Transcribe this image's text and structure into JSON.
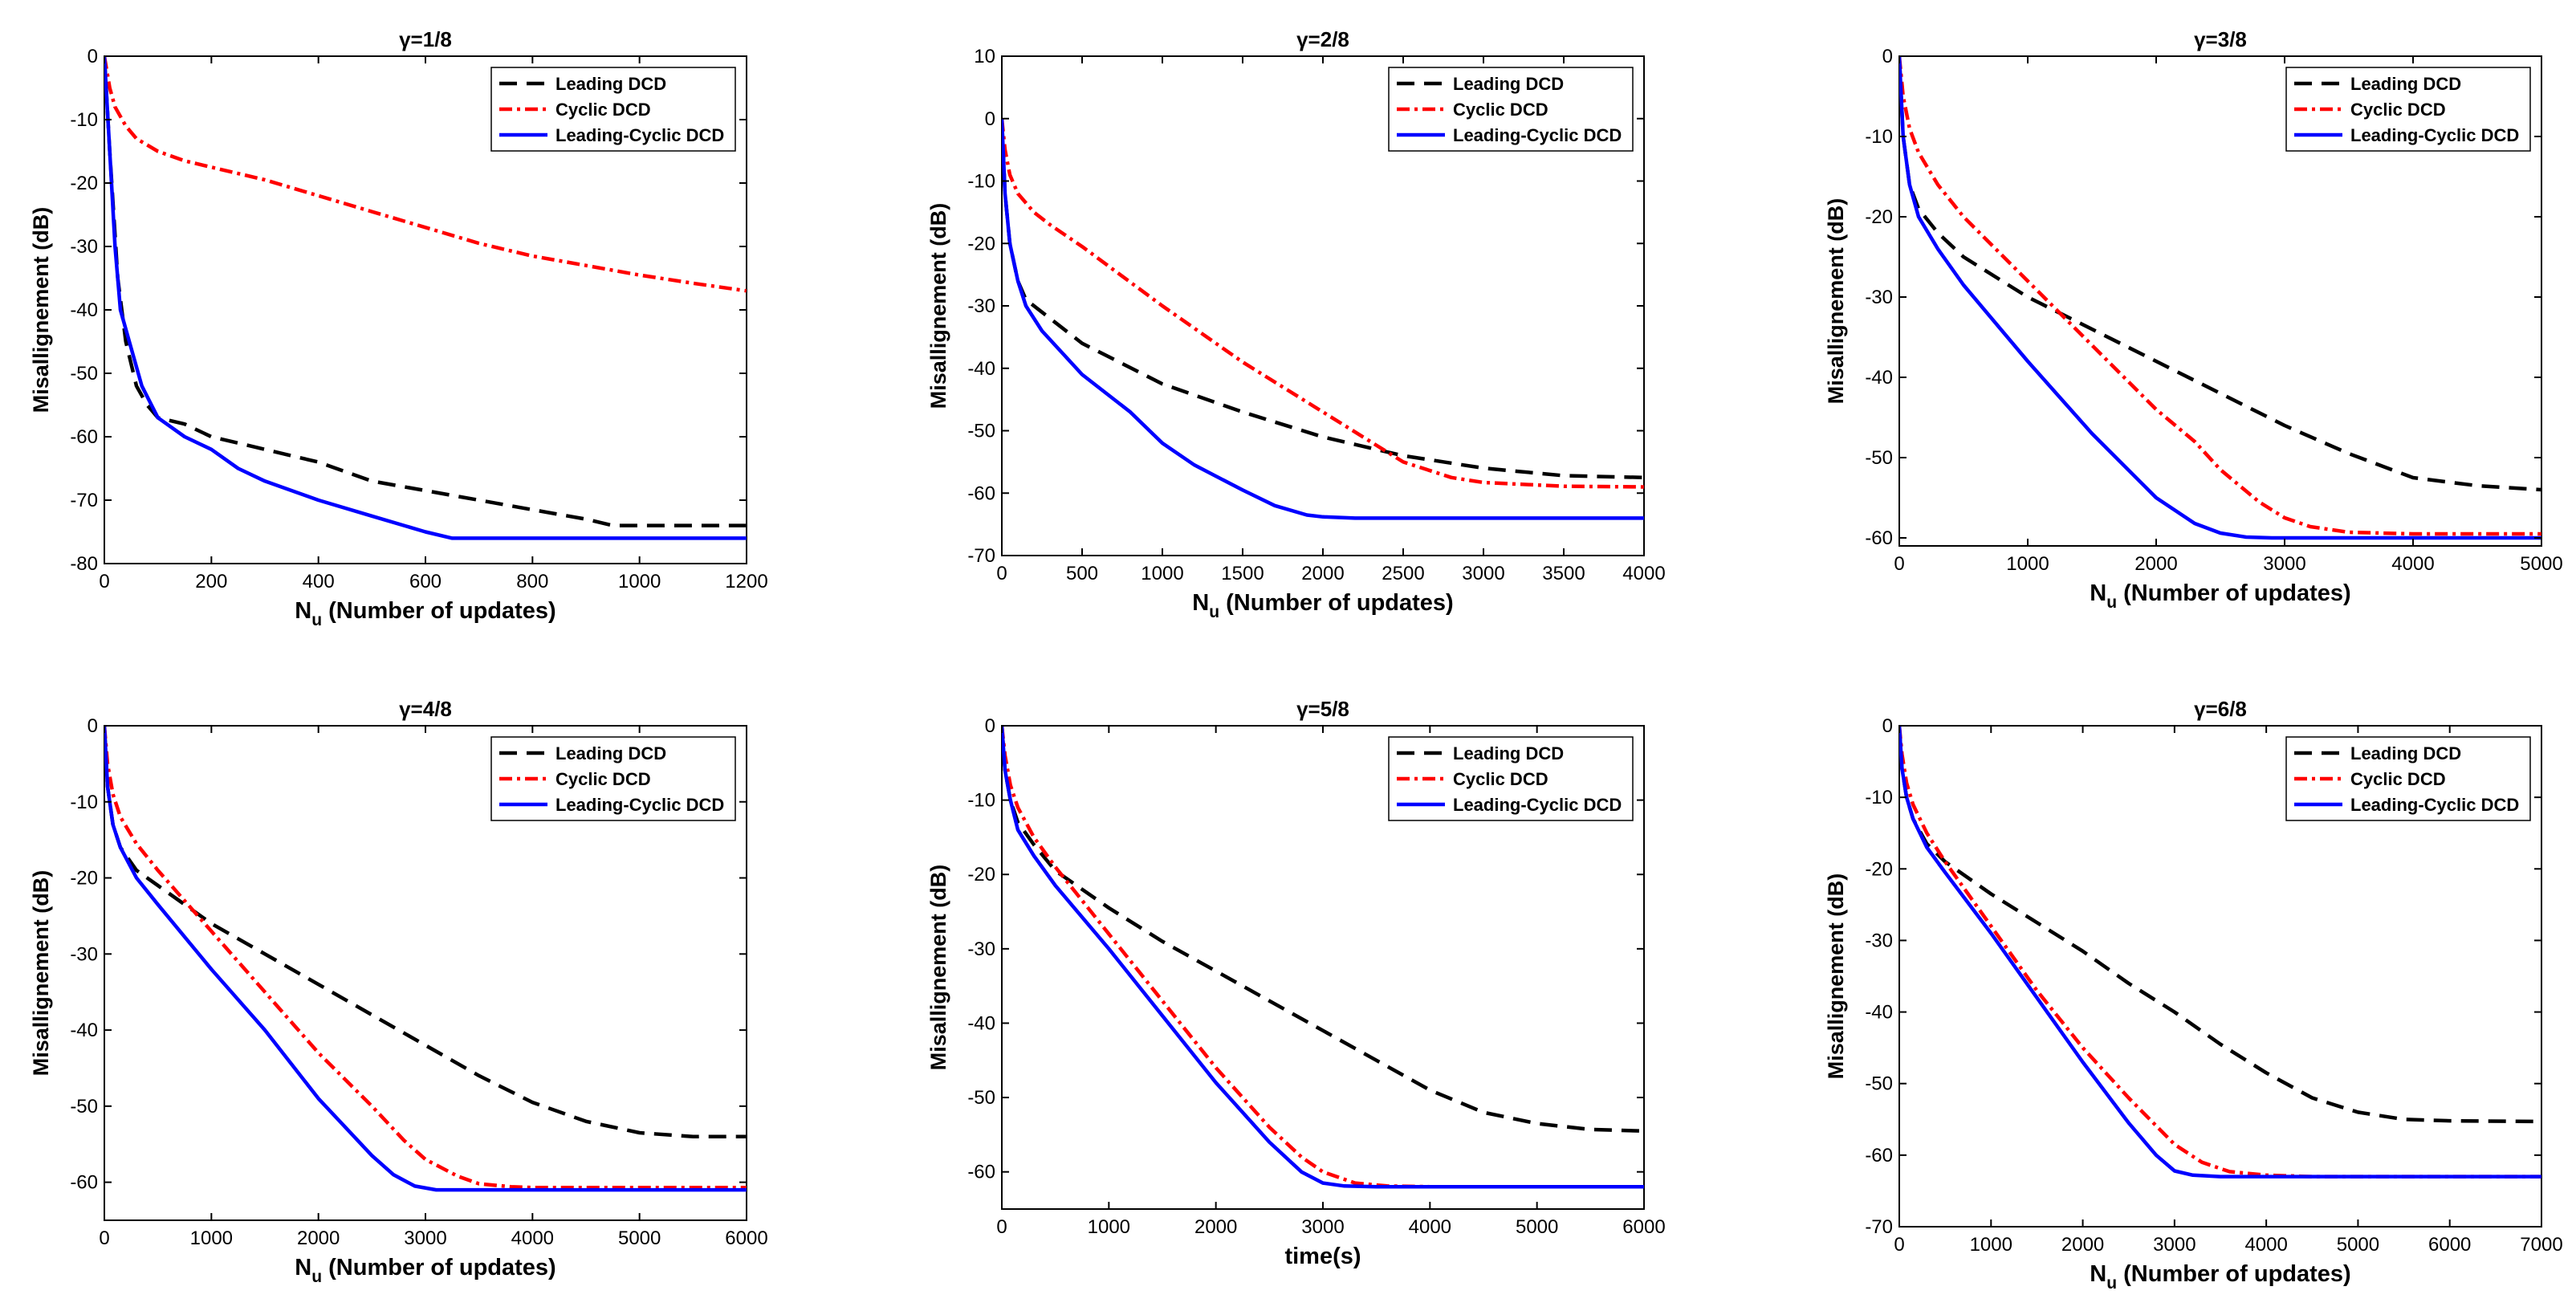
{
  "legend_labels": [
    "Leading DCD",
    "Cyclic DCD",
    "Leading-Cyclic DCD"
  ],
  "colors": {
    "leading": "#000000",
    "cyclic": "#ff0000",
    "leading_cyclic": "#0000ff"
  },
  "chart_data": [
    {
      "type": "line",
      "title": "γ=1/8",
      "xlabel": "N",
      "xlabel_sub": "u",
      "xlabel_rest": " (Number of updates)",
      "ylabel": "Misallignement (dB)",
      "xlim": [
        0,
        1200
      ],
      "ylim": [
        -80,
        0
      ],
      "xticks": [
        "0",
        "200",
        "400",
        "600",
        "800",
        "1000",
        "1200"
      ],
      "yticks": [
        "-80",
        "-70",
        "-60",
        "-50",
        "-40",
        "-30",
        "-20",
        "-10",
        "0"
      ],
      "legend_position": "top-right",
      "series": [
        {
          "name": "Leading DCD",
          "x": [
            0,
            10,
            25,
            40,
            60,
            80,
            100,
            150,
            200,
            300,
            400,
            500,
            600,
            700,
            800,
            900,
            950,
            1000,
            1200
          ],
          "y": [
            0,
            -15,
            -35,
            -45,
            -52,
            -55,
            -57,
            -58,
            -60,
            -62,
            -64,
            -67,
            -68.5,
            -70,
            -71.5,
            -73,
            -74,
            -74,
            -74
          ]
        },
        {
          "name": "Cyclic DCD",
          "x": [
            0,
            10,
            20,
            40,
            60,
            80,
            100,
            150,
            200,
            300,
            400,
            500,
            600,
            700,
            800,
            900,
            1000,
            1100,
            1200
          ],
          "y": [
            0,
            -5,
            -8,
            -11,
            -13,
            -14,
            -15,
            -16.5,
            -17.5,
            -19.5,
            -22,
            -24.5,
            -27,
            -29.5,
            -31.5,
            -33,
            -34.5,
            -35.8,
            -37
          ]
        },
        {
          "name": "Leading-Cyclic DCD",
          "x": [
            0,
            10,
            20,
            30,
            50,
            70,
            100,
            150,
            200,
            250,
            300,
            400,
            500,
            600,
            650,
            700,
            1200
          ],
          "y": [
            0,
            -15,
            -30,
            -40,
            -46,
            -52,
            -57,
            -60,
            -62,
            -65,
            -67,
            -70,
            -72.5,
            -75,
            -76,
            -76,
            -76
          ]
        }
      ]
    },
    {
      "type": "line",
      "title": "γ=2/8",
      "xlabel": "N",
      "xlabel_sub": "u",
      "xlabel_rest": " (Number of updates)",
      "ylabel": "Misallignement (dB)",
      "xlim": [
        0,
        4000
      ],
      "ylim": [
        -70,
        10
      ],
      "xticks": [
        "0",
        "500",
        "1000",
        "1500",
        "2000",
        "2500",
        "3000",
        "3500",
        "4000"
      ],
      "yticks": [
        "-70",
        "-60",
        "-50",
        "-40",
        "-30",
        "-20",
        "-10",
        "0",
        "10"
      ],
      "legend_position": "top-right",
      "series": [
        {
          "name": "Leading DCD",
          "x": [
            0,
            20,
            50,
            100,
            150,
            250,
            500,
            1000,
            1500,
            2000,
            2500,
            3000,
            3500,
            4000
          ],
          "y": [
            0,
            -12,
            -20,
            -26,
            -29,
            -31,
            -36,
            -42.5,
            -47,
            -51,
            -54,
            -56,
            -57.2,
            -57.5
          ]
        },
        {
          "name": "Cyclic DCD",
          "x": [
            0,
            20,
            50,
            100,
            200,
            300,
            500,
            1000,
            1500,
            2000,
            2500,
            2800,
            3000,
            3500,
            4000
          ],
          "y": [
            0,
            -5,
            -9,
            -12,
            -15,
            -17,
            -20.5,
            -30,
            -39,
            -47,
            -55,
            -57.5,
            -58.3,
            -58.9,
            -59
          ]
        },
        {
          "name": "Leading-Cyclic DCD",
          "x": [
            0,
            20,
            50,
            100,
            150,
            250,
            500,
            800,
            1000,
            1200,
            1500,
            1700,
            1900,
            2000,
            2200,
            4000
          ],
          "y": [
            0,
            -12,
            -20,
            -26,
            -30,
            -34,
            -41,
            -47,
            -52,
            -55.5,
            -59.5,
            -62,
            -63.5,
            -63.8,
            -64,
            -64
          ]
        }
      ]
    },
    {
      "type": "line",
      "title": "γ=3/8",
      "xlabel": "N",
      "xlabel_sub": "u",
      "xlabel_rest": " (Number of updates)",
      "ylabel": "Misallignement (dB)",
      "xlim": [
        0,
        5000
      ],
      "ylim": [
        -61,
        0
      ],
      "xticks": [
        "0",
        "1000",
        "2000",
        "3000",
        "4000",
        "5000"
      ],
      "yticks": [
        "-60",
        "-50",
        "-40",
        "-30",
        "-20",
        "-10",
        "0"
      ],
      "legend_position": "top-right",
      "series": [
        {
          "name": "Leading DCD",
          "x": [
            0,
            30,
            80,
            150,
            300,
            500,
            1000,
            1500,
            2000,
            2500,
            3000,
            3500,
            4000,
            4500,
            5000
          ],
          "y": [
            0,
            -10,
            -16,
            -19,
            -22,
            -25,
            -30,
            -34,
            -38,
            -42,
            -46,
            -49.5,
            -52.5,
            -53.5,
            -54
          ]
        },
        {
          "name": "Cyclic DCD",
          "x": [
            0,
            30,
            80,
            150,
            300,
            500,
            1000,
            1500,
            2000,
            2300,
            2500,
            2800,
            3000,
            3200,
            3500,
            4000,
            5000
          ],
          "y": [
            0,
            -5,
            -9,
            -12,
            -16,
            -20,
            -28,
            -36,
            -44,
            -48,
            -51.5,
            -55.5,
            -57.5,
            -58.6,
            -59.3,
            -59.5,
            -59.5
          ]
        },
        {
          "name": "Leading-Cyclic DCD",
          "x": [
            0,
            30,
            80,
            150,
            300,
            500,
            1000,
            1500,
            2000,
            2300,
            2500,
            2700,
            2900,
            3000,
            5000
          ],
          "y": [
            0,
            -10,
            -16,
            -20,
            -24,
            -28.5,
            -38,
            -47,
            -55,
            -58.2,
            -59.4,
            -59.9,
            -60,
            -60,
            -60
          ]
        }
      ]
    },
    {
      "type": "line",
      "title": "γ=4/8",
      "xlabel": "N",
      "xlabel_sub": "u",
      "xlabel_rest": " (Number of updates)",
      "ylabel": "Misallignement (dB)",
      "xlim": [
        0,
        6000
      ],
      "ylim": [
        -65,
        0
      ],
      "xticks": [
        "0",
        "1000",
        "2000",
        "3000",
        "4000",
        "5000",
        "6000"
      ],
      "yticks": [
        "-60",
        "-50",
        "-40",
        "-30",
        "-20",
        "-10",
        "0"
      ],
      "legend_position": "top-right",
      "series": [
        {
          "name": "Leading DCD",
          "x": [
            0,
            30,
            80,
            150,
            300,
            500,
            1000,
            1500,
            2000,
            2500,
            3000,
            3500,
            4000,
            4500,
            5000,
            5500,
            6000
          ],
          "y": [
            0,
            -8,
            -13,
            -16,
            -19,
            -21,
            -26,
            -30,
            -34,
            -38,
            -42,
            -46,
            -49.5,
            -52,
            -53.5,
            -54,
            -54
          ]
        },
        {
          "name": "Cyclic DCD",
          "x": [
            0,
            30,
            80,
            150,
            300,
            500,
            1000,
            1500,
            2000,
            2500,
            2800,
            3000,
            3300,
            3500,
            3800,
            4000,
            6000
          ],
          "y": [
            0,
            -5,
            -9,
            -12,
            -15.5,
            -19,
            -27,
            -35,
            -43,
            -50,
            -54.5,
            -57,
            -59.2,
            -60.2,
            -60.6,
            -60.7,
            -60.7
          ]
        },
        {
          "name": "Leading-Cyclic DCD",
          "x": [
            0,
            30,
            80,
            150,
            300,
            500,
            1000,
            1500,
            2000,
            2500,
            2700,
            2900,
            3100,
            3300,
            6000
          ],
          "y": [
            0,
            -8,
            -13,
            -16,
            -20,
            -23.5,
            -32,
            -40,
            -49,
            -56.5,
            -59,
            -60.5,
            -61,
            -61,
            -61
          ]
        }
      ]
    },
    {
      "type": "line",
      "title": "γ=5/8",
      "xlabel": "time(s)",
      "xlabel_sub": "",
      "xlabel_rest": "",
      "ylabel": "Misallignement (dB)",
      "xlim": [
        0,
        6000
      ],
      "ylim": [
        -65,
        0
      ],
      "xticks": [
        "0",
        "1000",
        "2000",
        "3000",
        "4000",
        "5000",
        "6000"
      ],
      "yticks": [
        "-60",
        "-50",
        "-40",
        "-30",
        "-20",
        "-10",
        "0"
      ],
      "legend_position": "top-right",
      "series": [
        {
          "name": "Leading DCD",
          "x": [
            0,
            30,
            80,
            150,
            300,
            500,
            1000,
            1500,
            2000,
            2500,
            3000,
            3500,
            4000,
            4500,
            5000,
            5500,
            6000
          ],
          "y": [
            0,
            -6,
            -10,
            -13,
            -16,
            -19.5,
            -24.5,
            -29,
            -33,
            -37,
            -41,
            -45,
            -49,
            -52,
            -53.5,
            -54.3,
            -54.5
          ]
        },
        {
          "name": "Cyclic DCD",
          "x": [
            0,
            30,
            80,
            150,
            300,
            500,
            1000,
            1500,
            2000,
            2500,
            2800,
            3000,
            3300,
            3600,
            4000,
            6000
          ],
          "y": [
            0,
            -4,
            -8,
            -11,
            -15,
            -19,
            -28,
            -37,
            -46,
            -54,
            -58,
            -60,
            -61.5,
            -61.9,
            -62,
            -62
          ]
        },
        {
          "name": "Leading-Cyclic DCD",
          "x": [
            0,
            30,
            80,
            150,
            300,
            500,
            1000,
            1500,
            2000,
            2500,
            2800,
            3000,
            3200,
            3500,
            6000
          ],
          "y": [
            0,
            -6,
            -10,
            -14,
            -17.5,
            -21.5,
            -30,
            -39,
            -48,
            -56,
            -60,
            -61.5,
            -61.9,
            -62,
            -62
          ]
        }
      ]
    },
    {
      "type": "line",
      "title": "γ=6/8",
      "xlabel": "N",
      "xlabel_sub": "u",
      "xlabel_rest": " (Number of updates)",
      "ylabel": "Misallignement (dB)",
      "xlim": [
        0,
        7000
      ],
      "ylim": [
        -70,
        0
      ],
      "xticks": [
        "0",
        "1000",
        "2000",
        "3000",
        "4000",
        "5000",
        "6000",
        "7000"
      ],
      "yticks": [
        "-70",
        "-60",
        "-50",
        "-40",
        "-30",
        "-20",
        "-10",
        "0"
      ],
      "legend_position": "top-right",
      "series": [
        {
          "name": "Leading DCD",
          "x": [
            0,
            30,
            80,
            150,
            300,
            500,
            1000,
            1500,
            2000,
            2500,
            3000,
            3500,
            4000,
            4500,
            5000,
            5500,
            6000,
            7000
          ],
          "y": [
            0,
            -6,
            -10,
            -13,
            -16.5,
            -19,
            -23.5,
            -27.5,
            -31.5,
            -36,
            -40,
            -44.5,
            -48.5,
            -52,
            -54,
            -55,
            -55.2,
            -55.3
          ]
        },
        {
          "name": "Cyclic DCD",
          "x": [
            0,
            30,
            80,
            150,
            300,
            500,
            1000,
            1500,
            2000,
            2500,
            3000,
            3300,
            3600,
            4000,
            4500,
            7000
          ],
          "y": [
            0,
            -4,
            -8,
            -11,
            -15,
            -19,
            -28,
            -37,
            -45,
            -52,
            -58.5,
            -61,
            -62.3,
            -62.8,
            -63,
            -63
          ]
        },
        {
          "name": "Leading-Cyclic DCD",
          "x": [
            0,
            30,
            80,
            150,
            300,
            500,
            1000,
            1500,
            2000,
            2500,
            2800,
            3000,
            3200,
            3500,
            7000
          ],
          "y": [
            0,
            -6,
            -10,
            -13,
            -17,
            -20.5,
            -29,
            -38,
            -47,
            -55.5,
            -60,
            -62.2,
            -62.8,
            -63,
            -63
          ]
        }
      ]
    }
  ]
}
